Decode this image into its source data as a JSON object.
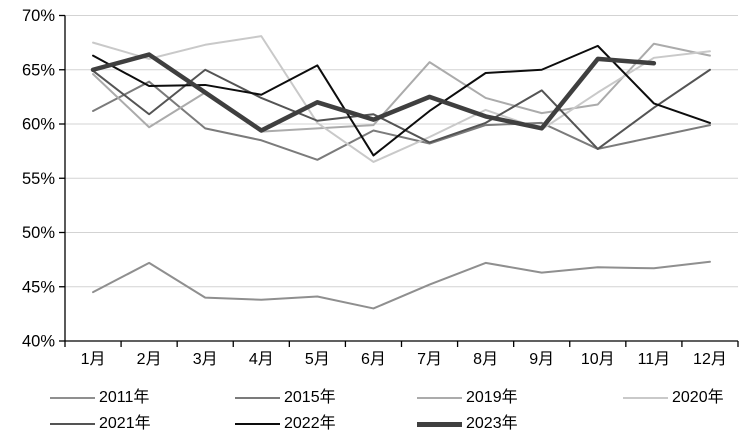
{
  "chart_data": {
    "type": "line",
    "title": "",
    "xlabel": "",
    "ylabel": "",
    "grid": "horizontal",
    "legend_position": "bottom",
    "background_color": "#ffffff",
    "gridline_color": "#d3d3d3",
    "axis_color": "#000000",
    "categories": [
      "1月",
      "2月",
      "3月",
      "4月",
      "5月",
      "6月",
      "7月",
      "8月",
      "9月",
      "10月",
      "11月",
      "12月"
    ],
    "y_axis": {
      "min": 40,
      "max": 70,
      "step": 5,
      "tick_labels": [
        "40%",
        "45%",
        "50%",
        "55%",
        "60%",
        "65%",
        "70%"
      ]
    },
    "series": [
      {
        "name": "2011年",
        "color": "#8f8f8f",
        "width": 2,
        "values": [
          44.5,
          47.2,
          44.0,
          43.8,
          44.1,
          43.0,
          45.2,
          47.2,
          46.3,
          46.8,
          46.7,
          47.3
        ]
      },
      {
        "name": "2015年",
        "color": "#7b7b7b",
        "width": 2,
        "values": [
          61.2,
          63.9,
          59.6,
          58.5,
          56.7,
          59.4,
          58.2,
          59.9,
          60.1,
          57.7,
          58.8,
          59.9
        ]
      },
      {
        "name": "2019年",
        "color": "#ababab",
        "width": 2,
        "values": [
          64.6,
          59.7,
          62.9,
          59.3,
          59.6,
          59.9,
          65.7,
          62.4,
          61.0,
          61.8,
          67.4,
          66.3
        ]
      },
      {
        "name": "2020年",
        "color": "#c9c9c9",
        "width": 2,
        "values": [
          67.5,
          66.0,
          67.3,
          68.1,
          60.1,
          56.5,
          58.8,
          61.3,
          59.5,
          62.9,
          66.1,
          66.7
        ]
      },
      {
        "name": "2021年",
        "color": "#545454",
        "width": 2,
        "values": [
          64.9,
          60.9,
          65.0,
          62.4,
          60.3,
          60.9,
          58.3,
          60.1,
          63.1,
          57.7,
          61.5,
          65.0
        ]
      },
      {
        "name": "2022年",
        "color": "#0d0d0d",
        "width": 2,
        "values": [
          66.3,
          63.5,
          63.6,
          62.7,
          65.4,
          57.1,
          61.2,
          64.7,
          65.0,
          67.2,
          61.9,
          60.1
        ]
      },
      {
        "name": "2023年",
        "color": "#3f3f3f",
        "width": 4.5,
        "values": [
          65.0,
          66.4,
          62.9,
          59.4,
          62.0,
          60.4,
          62.5,
          60.7,
          59.6,
          66.0,
          65.6,
          null
        ]
      }
    ],
    "legend_rows": [
      [
        0,
        1,
        2,
        3
      ],
      [
        4,
        5,
        6
      ]
    ]
  }
}
